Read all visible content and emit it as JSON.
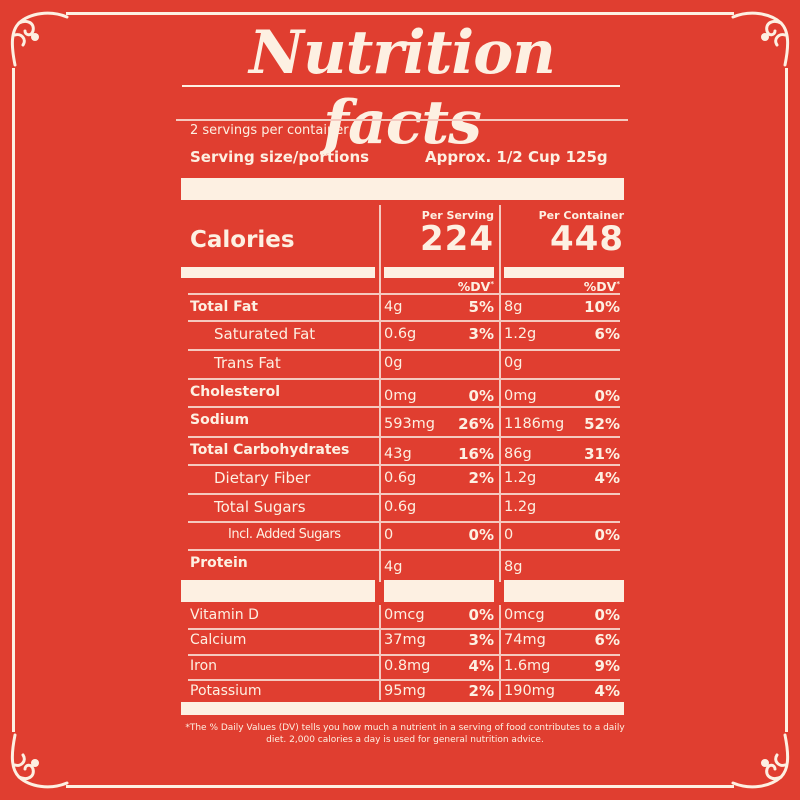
{
  "title": "Nutrition facts",
  "servings_per_container": "2 servings per container",
  "serving_size": {
    "label": "Serving size/portions",
    "value": "Approx. 1/2 Cup 125g"
  },
  "calories": {
    "label": "Calories",
    "per_serving_label": "Per Serving",
    "per_serving": "224",
    "per_container_label": "Per Container",
    "per_container": "448"
  },
  "dv_header": "%DV",
  "dv_marker": "*",
  "nutrients": [
    {
      "name": "Total Fat",
      "style": "bold",
      "serving": "4g",
      "serving_dv": "5%",
      "container": "8g",
      "container_dv": "10%"
    },
    {
      "name": "Saturated Fat",
      "style": "ind1",
      "serving": "0.6g",
      "serving_dv": "3%",
      "container": "1.2g",
      "container_dv": "6%"
    },
    {
      "name": "Trans Fat",
      "style": "ind1",
      "serving": "0g",
      "serving_dv": "",
      "container": "0g",
      "container_dv": ""
    },
    {
      "name": "Cholesterol",
      "style": "bold",
      "serving": "0mg",
      "serving_dv": "0%",
      "container": "0mg",
      "container_dv": "0%"
    },
    {
      "name": "Sodium",
      "style": "bold",
      "serving": "593mg",
      "serving_dv": "26%",
      "container": "1186mg",
      "container_dv": "52%"
    },
    {
      "name": "Total Carbohydrates",
      "style": "bold",
      "serving": "43g",
      "serving_dv": "16%",
      "container": "86g",
      "container_dv": "31%"
    },
    {
      "name": "Dietary Fiber",
      "style": "ind1",
      "serving": "0.6g",
      "serving_dv": "2%",
      "container": "1.2g",
      "container_dv": "4%"
    },
    {
      "name": "Total Sugars",
      "style": "ind1",
      "serving": "0.6g",
      "serving_dv": "",
      "container": "1.2g",
      "container_dv": ""
    },
    {
      "name": "Incl. Added Sugars",
      "style": "ind2",
      "serving": "0",
      "serving_dv": "0%",
      "container": "0",
      "container_dv": "0%"
    },
    {
      "name": "Protein",
      "style": "bold",
      "serving": "4g",
      "serving_dv": "",
      "container": "8g",
      "container_dv": ""
    }
  ],
  "vitamins": [
    {
      "name": "Vitamin D",
      "serving": "0mcg",
      "serving_dv": "0%",
      "container": "0mcg",
      "container_dv": "0%"
    },
    {
      "name": "Calcium",
      "serving": "37mg",
      "serving_dv": "3%",
      "container": "74mg",
      "container_dv": "6%"
    },
    {
      "name": "Iron",
      "serving": "0.8mg",
      "serving_dv": "4%",
      "container": "1.6mg",
      "container_dv": "9%"
    },
    {
      "name": "Potassium",
      "serving": "95mg",
      "serving_dv": "2%",
      "container": "190mg",
      "container_dv": "4%"
    }
  ],
  "footnote": "*The % Daily Values (DV) tells you how much a nutrient in a serving of food contributes to a daily diet. 2,000 calories a day is used for general nutrition advice.",
  "colors": {
    "background": "#e03e30",
    "foreground": "#fdf0e2"
  }
}
